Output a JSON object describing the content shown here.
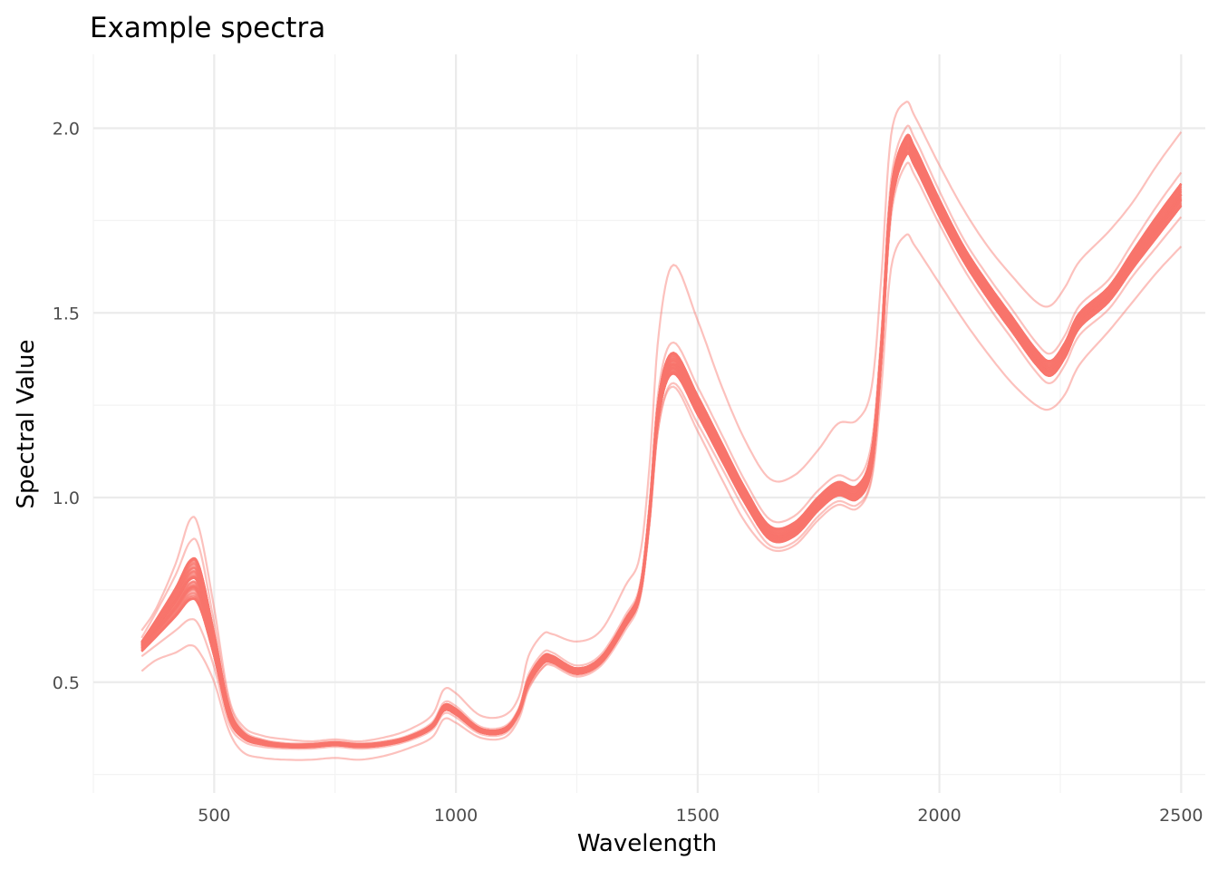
{
  "chart_data": {
    "type": "line",
    "title": "Example spectra",
    "xlabel": "Wavelength",
    "ylabel": "Spectral Value",
    "xlim": [
      250,
      2550
    ],
    "ylim": [
      0.2,
      2.2
    ],
    "x_ticks": [
      500,
      1000,
      1500,
      2000,
      2500
    ],
    "x_tick_labels": [
      "500",
      "1000",
      "1500",
      "2000",
      "2500"
    ],
    "y_ticks": [
      0.5,
      1.0,
      1.5,
      2.0
    ],
    "y_tick_labels": [
      "0.5",
      "1.0",
      "1.5",
      "2.0"
    ],
    "grid": true,
    "legend": "none",
    "line_color": "#F8766D",
    "line_opacity": 0.45,
    "n_spectra": 100,
    "x": [
      350,
      380,
      420,
      450,
      470,
      500,
      530,
      560,
      600,
      650,
      700,
      750,
      800,
      850,
      900,
      950,
      975,
      1000,
      1050,
      1100,
      1130,
      1150,
      1180,
      1200,
      1250,
      1300,
      1350,
      1380,
      1400,
      1420,
      1450,
      1500,
      1550,
      1600,
      1650,
      1700,
      1750,
      1790,
      1830,
      1860,
      1880,
      1900,
      1930,
      1950,
      2000,
      2050,
      2100,
      2150,
      2200,
      2230,
      2260,
      2290,
      2350,
      2400,
      2450,
      2500
    ],
    "series": [
      {
        "values": [
          0.6,
          0.65,
          0.72,
          0.78,
          0.76,
          0.6,
          0.42,
          0.36,
          0.34,
          0.33,
          0.33,
          0.335,
          0.33,
          0.335,
          0.35,
          0.38,
          0.43,
          0.42,
          0.37,
          0.37,
          0.42,
          0.5,
          0.56,
          0.56,
          0.53,
          0.56,
          0.66,
          0.74,
          0.95,
          1.25,
          1.36,
          1.25,
          1.12,
          1.0,
          0.9,
          0.91,
          0.98,
          1.02,
          1.01,
          1.1,
          1.4,
          1.8,
          1.95,
          1.92,
          1.78,
          1.66,
          1.56,
          1.47,
          1.38,
          1.35,
          1.4,
          1.48,
          1.55,
          1.64,
          1.73,
          1.82
        ]
      },
      {
        "values": [
          0.62,
          0.69,
          0.79,
          0.88,
          0.86,
          0.66,
          0.45,
          0.37,
          0.345,
          0.335,
          0.335,
          0.34,
          0.335,
          0.34,
          0.355,
          0.39,
          0.445,
          0.435,
          0.38,
          0.38,
          0.43,
          0.52,
          0.58,
          0.58,
          0.545,
          0.575,
          0.68,
          0.76,
          0.98,
          1.3,
          1.42,
          1.3,
          1.17,
          1.04,
          0.94,
          0.95,
          1.02,
          1.06,
          1.05,
          1.15,
          1.45,
          1.86,
          2.0,
          1.97,
          1.83,
          1.7,
          1.6,
          1.51,
          1.42,
          1.39,
          1.44,
          1.52,
          1.59,
          1.69,
          1.79,
          1.88
        ]
      },
      {
        "values": [
          0.57,
          0.6,
          0.64,
          0.67,
          0.65,
          0.54,
          0.39,
          0.34,
          0.325,
          0.32,
          0.32,
          0.325,
          0.32,
          0.325,
          0.34,
          0.37,
          0.415,
          0.405,
          0.36,
          0.36,
          0.41,
          0.485,
          0.54,
          0.545,
          0.515,
          0.545,
          0.64,
          0.72,
          0.92,
          1.2,
          1.31,
          1.2,
          1.08,
          0.96,
          0.87,
          0.88,
          0.95,
          0.99,
          0.98,
          1.06,
          1.36,
          1.76,
          1.9,
          1.87,
          1.74,
          1.62,
          1.52,
          1.43,
          1.34,
          1.31,
          1.36,
          1.44,
          1.51,
          1.6,
          1.68,
          1.76
        ]
      },
      {
        "values": [
          0.64,
          0.7,
          0.82,
          0.94,
          0.91,
          0.7,
          0.46,
          0.38,
          0.355,
          0.345,
          0.34,
          0.345,
          0.34,
          0.35,
          0.37,
          0.41,
          0.48,
          0.47,
          0.41,
          0.41,
          0.46,
          0.57,
          0.63,
          0.63,
          0.61,
          0.64,
          0.76,
          0.84,
          1.08,
          1.45,
          1.63,
          1.48,
          1.3,
          1.15,
          1.05,
          1.06,
          1.13,
          1.2,
          1.21,
          1.3,
          1.6,
          1.98,
          2.07,
          2.03,
          1.9,
          1.78,
          1.68,
          1.6,
          1.53,
          1.52,
          1.57,
          1.64,
          1.72,
          1.8,
          1.9,
          1.99
        ]
      },
      {
        "values": [
          0.53,
          0.56,
          0.58,
          0.6,
          0.58,
          0.5,
          0.37,
          0.31,
          0.295,
          0.29,
          0.29,
          0.295,
          0.29,
          0.3,
          0.32,
          0.35,
          0.4,
          0.39,
          0.35,
          0.35,
          0.4,
          0.48,
          0.54,
          0.55,
          0.52,
          0.55,
          0.65,
          0.73,
          0.93,
          1.2,
          1.3,
          1.18,
          1.05,
          0.93,
          0.86,
          0.87,
          0.94,
          0.98,
          0.97,
          1.05,
          1.3,
          1.62,
          1.71,
          1.68,
          1.58,
          1.48,
          1.39,
          1.31,
          1.25,
          1.24,
          1.28,
          1.36,
          1.45,
          1.53,
          1.61,
          1.68
        ]
      }
    ]
  }
}
